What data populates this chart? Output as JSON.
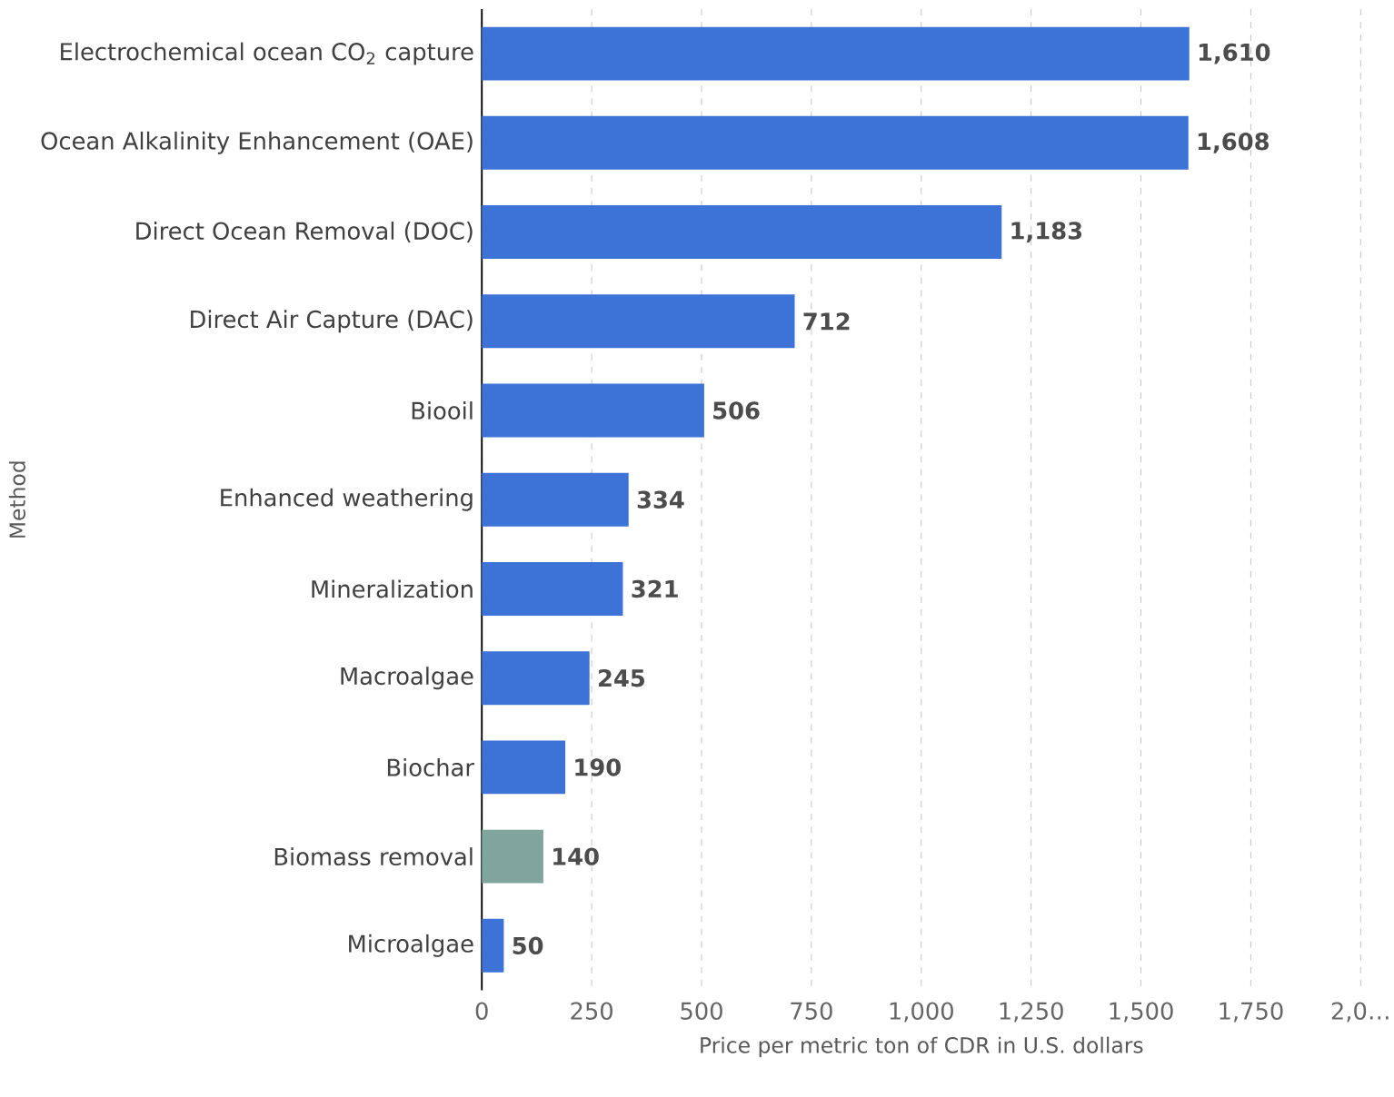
{
  "chart_data": {
    "type": "bar",
    "orientation": "horizontal",
    "xlabel": "Price per metric ton of CDR in U.S. dollars",
    "ylabel": "Method",
    "categories": [
      "Electrochemical ocean CO$_{2}$ capture",
      "Ocean Alkalinity Enhancement (OAE)",
      "Direct Ocean Removal (DOC)",
      "Direct Air Capture (DAC)",
      "Biooil",
      "Enhanced weathering",
      "Mineralization",
      "Macroalgae",
      "Biochar",
      "Biomass removal",
      "Microalgae"
    ],
    "values": [
      1610,
      1608,
      1183,
      712,
      506,
      334,
      321,
      245,
      190,
      140,
      50
    ],
    "value_labels": [
      "1,610",
      "1,608",
      "1,183",
      "712",
      "506",
      "334",
      "321",
      "245",
      "190",
      "140",
      "50"
    ],
    "colors": [
      "#3d72d7",
      "#3d72d7",
      "#3d72d7",
      "#3d72d7",
      "#3d72d7",
      "#3d72d7",
      "#3d72d7",
      "#3d72d7",
      "#3d72d7",
      "#7fa59c",
      "#3d72d7"
    ],
    "xlim": [
      0,
      2000
    ],
    "xticks": [
      0,
      250,
      500,
      750,
      {
        "value": 1000,
        "label": "1,000"
      },
      {
        "value": 1250,
        "label": "1,250"
      },
      {
        "value": 1500,
        "label": "1,500"
      },
      {
        "value": 1750,
        "label": "1,750"
      },
      {
        "value": 2000,
        "label": "2,0…"
      }
    ],
    "grid": "x"
  }
}
